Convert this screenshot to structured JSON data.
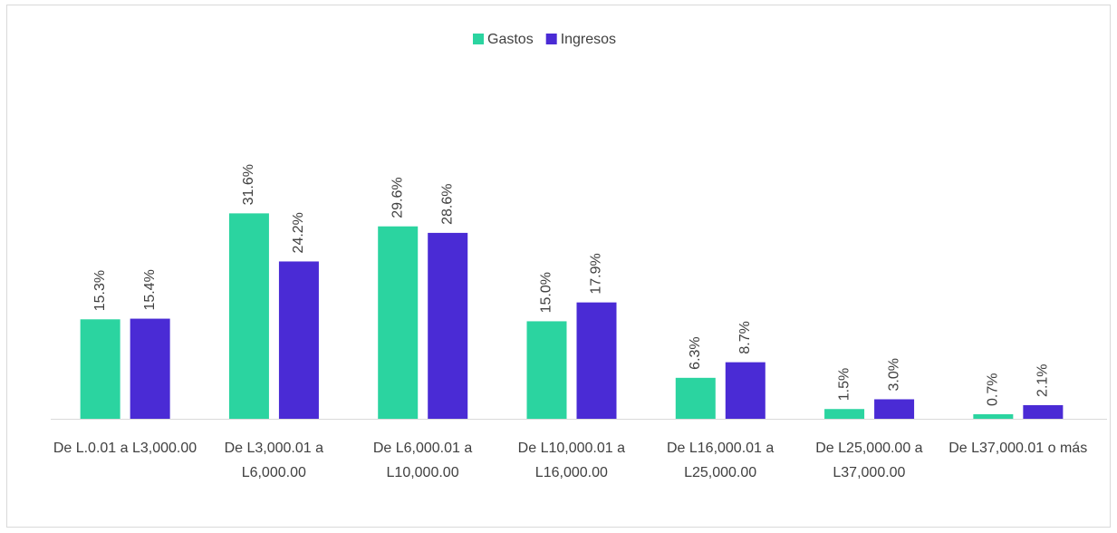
{
  "chart_data": {
    "type": "bar",
    "categories": [
      "De L.0.01 a L3,000.00",
      "De L3,000.01 a L6,000.00",
      "De L6,000.01 a L10,000.00",
      "De L10,000.01 a L16,000.00",
      "De L16,000.01 a L25,000.00",
      "De L25,000.00 a L37,000.00",
      "De L37,000.01 o más"
    ],
    "series": [
      {
        "name": "Gastos",
        "color": "#2bd4a0",
        "values": [
          15.3,
          31.6,
          29.6,
          15.0,
          6.3,
          1.5,
          0.7
        ],
        "value_labels": [
          "15.3%",
          "31.6%",
          "29.6%",
          "15.0%",
          "6.3%",
          "1.5%",
          "0.7%"
        ]
      },
      {
        "name": "Ingresos",
        "color": "#4a2bd5",
        "values": [
          15.4,
          24.2,
          28.6,
          17.9,
          8.7,
          3.0,
          2.1
        ],
        "value_labels": [
          "15.4%",
          "24.2%",
          "28.6%",
          "17.9%",
          "8.7%",
          "3.0%",
          "2.1%"
        ]
      }
    ],
    "ylim": [
      0,
      35
    ],
    "grid": false,
    "legend": "top"
  }
}
